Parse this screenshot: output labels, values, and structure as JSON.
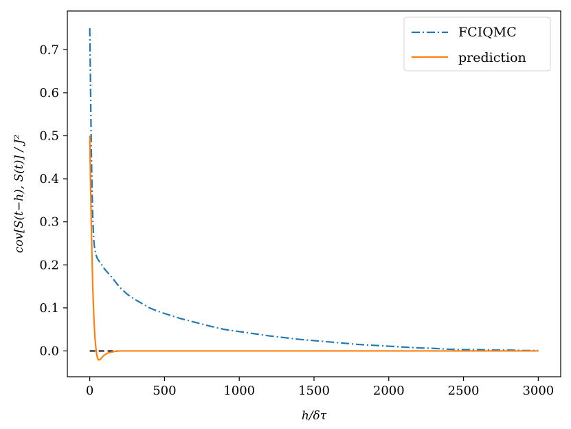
{
  "chart_data": {
    "type": "line",
    "title": "",
    "xlabel": "h/δτ",
    "ylabel": "cov[S(t−h), S(t)] / J²",
    "xlim": [
      -150,
      3150
    ],
    "ylim": [
      -0.06,
      0.79
    ],
    "xticks": [
      0,
      500,
      1000,
      1500,
      2000,
      2500,
      3000
    ],
    "yticks": [
      0.0,
      0.1,
      0.2,
      0.3,
      0.4,
      0.5,
      0.6,
      0.7
    ],
    "xtick_labels": [
      "0",
      "500",
      "1000",
      "1500",
      "2000",
      "2500",
      "3000"
    ],
    "ytick_labels": [
      "0.0",
      "0.1",
      "0.2",
      "0.3",
      "0.4",
      "0.5",
      "0.6",
      "0.7"
    ],
    "legend_position": "top-right",
    "grid": false,
    "reference_line": {
      "y": 0.0,
      "x": [
        0,
        3000
      ],
      "color": "#000000",
      "style": "dashed"
    },
    "series": [
      {
        "name": "FCIQMC",
        "color": "#1f77b4",
        "style": "dashdot",
        "x": [
          0,
          5,
          10,
          15,
          20,
          25,
          30,
          40,
          50,
          60,
          80,
          100,
          150,
          200,
          250,
          300,
          350,
          400,
          450,
          500,
          600,
          700,
          800,
          900,
          1000,
          1100,
          1200,
          1300,
          1400,
          1500,
          1600,
          1700,
          1800,
          1900,
          2000,
          2100,
          2200,
          2300,
          2400,
          2500,
          2600,
          2700,
          2800,
          2900,
          3000
        ],
        "y": [
          0.75,
          0.62,
          0.48,
          0.38,
          0.31,
          0.27,
          0.245,
          0.225,
          0.215,
          0.21,
          0.2,
          0.19,
          0.17,
          0.148,
          0.132,
          0.12,
          0.11,
          0.1,
          0.093,
          0.087,
          0.076,
          0.067,
          0.058,
          0.05,
          0.045,
          0.04,
          0.035,
          0.031,
          0.027,
          0.024,
          0.021,
          0.018,
          0.015,
          0.013,
          0.011,
          0.009,
          0.007,
          0.006,
          0.004,
          0.003,
          0.003,
          0.002,
          0.002,
          0.001,
          0.001
        ]
      },
      {
        "name": "prediction",
        "color": "#ff7f0e",
        "style": "solid",
        "x": [
          0,
          5,
          10,
          15,
          20,
          25,
          30,
          35,
          40,
          45,
          50,
          55,
          60,
          70,
          80,
          90,
          100,
          120,
          140,
          170,
          200,
          250,
          300,
          500,
          1000,
          1500,
          2000,
          2500,
          3000
        ],
        "y": [
          0.5,
          0.4,
          0.3,
          0.22,
          0.15,
          0.1,
          0.06,
          0.03,
          0.01,
          -0.005,
          -0.014,
          -0.019,
          -0.021,
          -0.02,
          -0.016,
          -0.012,
          -0.009,
          -0.005,
          -0.003,
          -0.001,
          0.0,
          0.0,
          0.0,
          0.0,
          0.0,
          0.0,
          0.0,
          0.0,
          0.0
        ]
      }
    ]
  }
}
